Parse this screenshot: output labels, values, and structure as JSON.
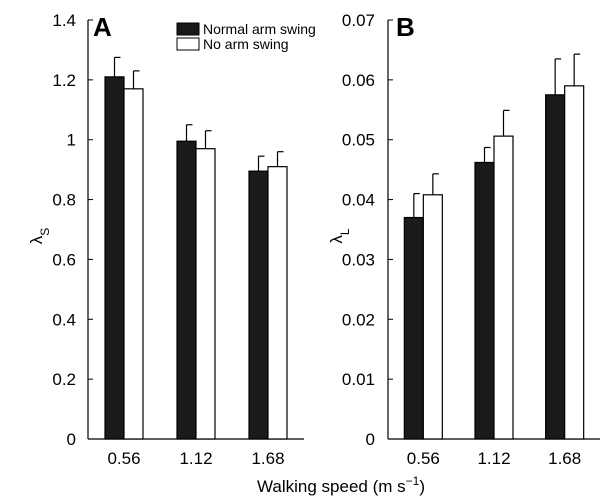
{
  "chart_data": [
    {
      "type": "bar",
      "panel": "A",
      "categories": [
        "0.56",
        "1.12",
        "1.68"
      ],
      "ylabel": "λS",
      "ylim": [
        0,
        1.4
      ],
      "yticks": [
        "0",
        "0.2",
        "0.4",
        "0.6",
        "0.8",
        "1",
        "1.2",
        "1.4"
      ],
      "series": [
        {
          "name": "Normal arm swing",
          "values": [
            1.21,
            0.995,
            0.895
          ],
          "errors": [
            0.065,
            0.055,
            0.05
          ],
          "color": "#1a1a1a"
        },
        {
          "name": "No arm swing",
          "values": [
            1.17,
            0.97,
            0.91
          ],
          "errors": [
            0.06,
            0.06,
            0.05
          ],
          "color": "#ffffff"
        }
      ],
      "legend_position": "top-right",
      "grid": false
    },
    {
      "type": "bar",
      "panel": "B",
      "categories": [
        "0.56",
        "1.12",
        "1.68"
      ],
      "ylabel": "λL",
      "ylim": [
        0,
        0.07
      ],
      "yticks": [
        "0",
        "0.01",
        "0.02",
        "0.03",
        "0.04",
        "0.05",
        "0.06",
        "0.07"
      ],
      "series": [
        {
          "name": "Normal arm swing",
          "values": [
            0.037,
            0.0462,
            0.0575
          ],
          "errors": [
            0.004,
            0.0025,
            0.006
          ],
          "color": "#1a1a1a"
        },
        {
          "name": "No arm swing",
          "values": [
            0.0408,
            0.0506,
            0.059
          ],
          "errors": [
            0.0035,
            0.0043,
            0.0053
          ],
          "color": "#ffffff"
        }
      ],
      "grid": false
    }
  ],
  "shared_xlabel": "Walking speed (m s−1)",
  "xlabel_main": "Walking speed (m s",
  "xlabel_sup": "−1",
  "xlabel_end": ")",
  "ylabel_a_main": "λ",
  "ylabel_a_sub": "S",
  "ylabel_b_main": "λ",
  "ylabel_b_sub": "L",
  "legend": [
    {
      "label": "Normal arm swing",
      "swatch": "#1a1a1a"
    },
    {
      "label": "No arm swing",
      "swatch": "#ffffff"
    }
  ]
}
